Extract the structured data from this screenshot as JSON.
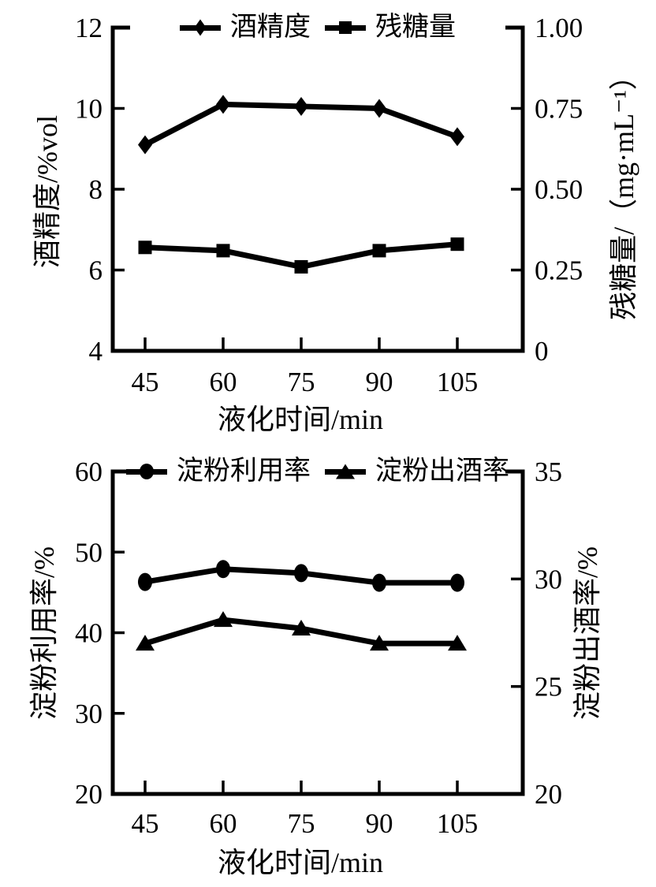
{
  "page": {
    "background": "#ffffff",
    "ink": "#000000"
  },
  "chart_data": [
    {
      "type": "line",
      "title": "",
      "xlabel": "液化时间/min",
      "x": [
        45,
        60,
        75,
        90,
        105
      ],
      "x_tick_labels": [
        "45",
        "60",
        "75",
        "90",
        "105"
      ],
      "left_axis": {
        "label": "酒精度/%vol",
        "min": 4,
        "max": 12,
        "ticks": [
          4,
          6,
          8,
          10,
          12
        ],
        "tick_labels": [
          "4",
          "6",
          "8",
          "10",
          "12"
        ]
      },
      "right_axis": {
        "label": "残糖量/（mg·mL⁻¹）",
        "min": 0,
        "max": 1,
        "ticks": [
          0,
          0.25,
          0.5,
          0.75,
          1
        ],
        "tick_labels": [
          "0",
          "0.25",
          "0.50",
          "0.75",
          "1.00"
        ]
      },
      "series": [
        {
          "name": "酒精度",
          "axis": "left",
          "marker": "diamond",
          "values": [
            9.1,
            10.1,
            10.05,
            10.0,
            9.3
          ]
        },
        {
          "name": "残糖量",
          "axis": "right",
          "marker": "square",
          "values": [
            0.32,
            0.31,
            0.26,
            0.31,
            0.33
          ]
        }
      ],
      "legend_position": "top-center",
      "grid": false
    },
    {
      "type": "line",
      "title": "",
      "xlabel": "液化时间/min",
      "x": [
        45,
        60,
        75,
        90,
        105
      ],
      "x_tick_labels": [
        "45",
        "60",
        "75",
        "90",
        "105"
      ],
      "left_axis": {
        "label": "淀粉利用率/%",
        "min": 20,
        "max": 60,
        "ticks": [
          20,
          30,
          40,
          50,
          60
        ],
        "tick_labels": [
          "20",
          "30",
          "40",
          "50",
          "60"
        ]
      },
      "right_axis": {
        "label": "淀粉出酒率/%",
        "min": 20,
        "max": 35,
        "ticks": [
          20,
          25,
          30,
          35
        ],
        "tick_labels": [
          "20",
          "25",
          "30",
          "35"
        ]
      },
      "series": [
        {
          "name": "淀粉利用率",
          "axis": "left",
          "marker": "circle",
          "values": [
            46.3,
            47.9,
            47.4,
            46.2,
            46.2
          ]
        },
        {
          "name": "淀粉出酒率",
          "axis": "right",
          "marker": "triangle",
          "values": [
            27.0,
            28.1,
            27.7,
            27.0,
            27.0
          ]
        }
      ],
      "legend_position": "top-center",
      "grid": false
    }
  ]
}
